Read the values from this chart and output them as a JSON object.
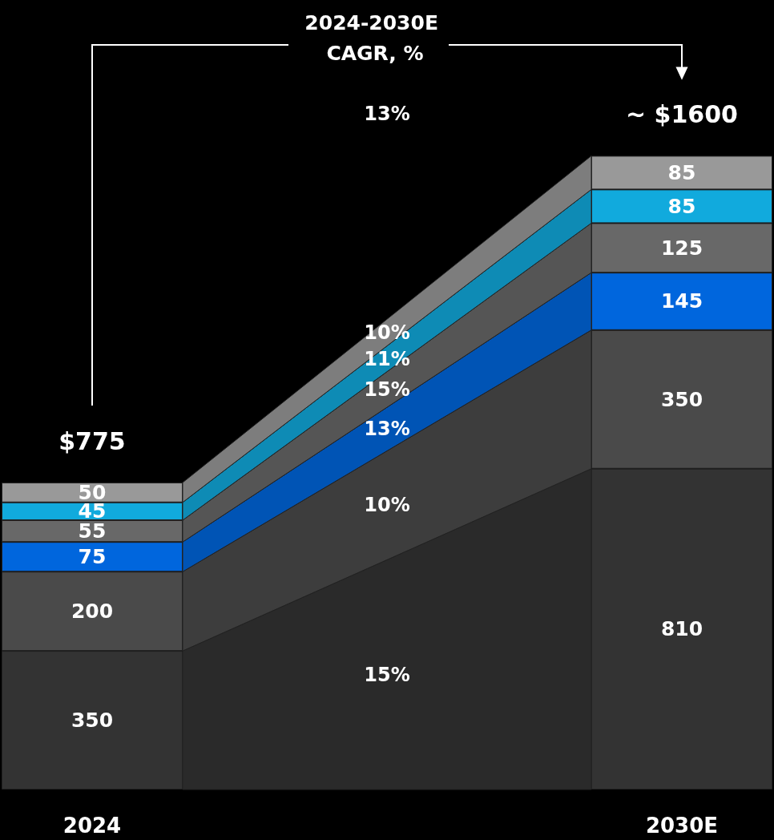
{
  "chart_data": {
    "type": "bar",
    "stacked": true,
    "data_labels": true,
    "title": "2024-2030E CAGR, %",
    "categories": [
      "2024",
      "2030E"
    ],
    "series": [
      {
        "color": "#333333",
        "values": [
          350,
          810
        ]
      },
      {
        "color": "#4a4a4a",
        "values": [
          200,
          350
        ]
      },
      {
        "color": "#0066dd",
        "values": [
          75,
          145
        ]
      },
      {
        "color": "#686868",
        "values": [
          55,
          125
        ]
      },
      {
        "color": "#11aadd",
        "values": [
          45,
          85
        ]
      },
      {
        "color": "#999999",
        "values": [
          50,
          85
        ]
      }
    ],
    "totals": [
      "$775",
      "~ $1600"
    ],
    "annotations": [
      "13%",
      "15%",
      "10%",
      "13%",
      "15%",
      "11%",
      "10%"
    ]
  }
}
